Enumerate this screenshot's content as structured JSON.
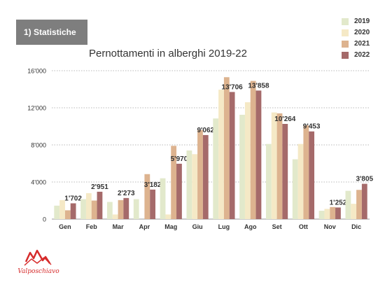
{
  "header": {
    "section_label": "1) Statistiche"
  },
  "logo": {
    "text": "Valposchiavo",
    "color": "#d62b2b"
  },
  "chart_data": {
    "type": "bar",
    "title": "Pernottamenti in alberghi 2019-22",
    "categories": [
      "Gen",
      "Feb",
      "Mar",
      "Apr",
      "Mag",
      "Giu",
      "Lug",
      "Ago",
      "Set",
      "Ott",
      "Nov",
      "Dic"
    ],
    "series": [
      {
        "name": "2019",
        "color": "#e2e9cb",
        "values": [
          1450,
          2150,
          1850,
          2150,
          4400,
          7400,
          10850,
          11250,
          8100,
          6450,
          900,
          3050
        ]
      },
      {
        "name": "2020",
        "color": "#f5e9c6",
        "values": [
          2050,
          2800,
          500,
          0,
          500,
          7000,
          13950,
          12600,
          11500,
          8100,
          1100,
          1650
        ]
      },
      {
        "name": "2021",
        "color": "#ddb38f",
        "values": [
          950,
          2000,
          2050,
          4850,
          7900,
          9600,
          15300,
          14900,
          11400,
          10100,
          1300,
          3150
        ]
      },
      {
        "name": "2022",
        "color": "#a56a6a",
        "values": [
          1702,
          2951,
          2273,
          3182,
          5970,
          9062,
          13706,
          13858,
          10264,
          9453,
          1252,
          3805
        ]
      }
    ],
    "data_labels": [
      "1'702",
      "2'951",
      "2'273",
      "3'182",
      "5'970",
      "9'062",
      "13'706",
      "13'858",
      "10'264",
      "9'453",
      "1'252",
      "3'805"
    ],
    "y_ticks": [
      0,
      4000,
      8000,
      12000,
      16000
    ],
    "y_tick_labels": [
      "0",
      "4'000",
      "8'000",
      "12'000",
      "16'000"
    ],
    "ylim": [
      0,
      16000
    ],
    "grid": true,
    "legend_position": "top-right"
  }
}
